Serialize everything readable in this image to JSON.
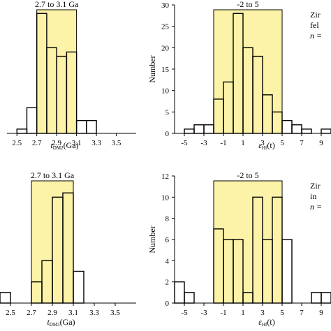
{
  "chart_data": [
    {
      "type": "bar",
      "panel": "top-left",
      "band_label": "2.7 to 3.1 Ga",
      "band_range": [
        2.7,
        3.1
      ],
      "xlim": [
        2.4,
        3.7
      ],
      "ylim": [
        0,
        30
      ],
      "x_ticks": [
        2.5,
        2.7,
        2.9,
        3.1,
        3.3,
        3.5
      ],
      "xlabel_main": "t",
      "xlabel_sub": "DM2",
      "xlabel_tail": "(Ga)",
      "bin_width": 0.1,
      "bins": [
        {
          "x": 2.55,
          "count": 1
        },
        {
          "x": 2.65,
          "count": 6
        },
        {
          "x": 2.75,
          "count": 28
        },
        {
          "x": 2.85,
          "count": 20
        },
        {
          "x": 2.95,
          "count": 18
        },
        {
          "x": 3.05,
          "count": 19
        },
        {
          "x": 3.15,
          "count": 3
        },
        {
          "x": 3.25,
          "count": 3
        }
      ]
    },
    {
      "type": "bar",
      "panel": "top-right",
      "band_label": "-2 to 5",
      "band_range": [
        -2,
        5
      ],
      "xlim": [
        -6,
        10
      ],
      "ylim": [
        0,
        30
      ],
      "x_ticks": [
        -5,
        -3,
        -1,
        1,
        3,
        5,
        7,
        9
      ],
      "y_ticks": [
        0,
        5,
        10,
        15,
        20,
        25,
        30
      ],
      "ylabel": "Number",
      "xlabel_main": "ε",
      "xlabel_sub": "Hf",
      "xlabel_tail": "(t)",
      "side_text": [
        "Zir",
        "fel",
        "n ="
      ],
      "bin_width": 1,
      "bins": [
        {
          "x": -4.5,
          "count": 1
        },
        {
          "x": -3.5,
          "count": 2
        },
        {
          "x": -2.5,
          "count": 2
        },
        {
          "x": -1.5,
          "count": 8
        },
        {
          "x": -0.5,
          "count": 12
        },
        {
          "x": 0.5,
          "count": 28
        },
        {
          "x": 1.5,
          "count": 20
        },
        {
          "x": 2.5,
          "count": 18
        },
        {
          "x": 3.5,
          "count": 9
        },
        {
          "x": 4.5,
          "count": 5
        },
        {
          "x": 5.5,
          "count": 3
        },
        {
          "x": 6.5,
          "count": 2
        },
        {
          "x": 7.5,
          "count": 1
        },
        {
          "x": 9.5,
          "count": 1
        }
      ]
    },
    {
      "type": "bar",
      "panel": "bottom-left",
      "band_label": "2.7 to 3.1 Ga",
      "band_range": [
        2.7,
        3.1
      ],
      "xlim": [
        2.4,
        3.7
      ],
      "ylim": [
        0,
        12
      ],
      "x_ticks": [
        2.5,
        2.7,
        2.9,
        3.1,
        3.3,
        3.5
      ],
      "xlabel_main": "t",
      "xlabel_sub": "DM3",
      "xlabel_tail": "(Ga)",
      "bin_width": 0.1,
      "bins": [
        {
          "x": 2.45,
          "count": 1
        },
        {
          "x": 2.75,
          "count": 2
        },
        {
          "x": 2.85,
          "count": 4
        },
        {
          "x": 2.95,
          "count": 10
        },
        {
          "x": 3.05,
          "count": 10.4
        },
        {
          "x": 3.15,
          "count": 3
        }
      ]
    },
    {
      "type": "bar",
      "panel": "bottom-right",
      "band_label": "-2 to 5",
      "band_range": [
        -2,
        5
      ],
      "xlim": [
        -6,
        10
      ],
      "ylim": [
        0,
        12
      ],
      "x_ticks": [
        -5,
        -3,
        -1,
        1,
        3,
        5,
        7,
        9
      ],
      "y_ticks": [
        0,
        2,
        4,
        6,
        8,
        10,
        12
      ],
      "ylabel": "Number",
      "xlabel_main": "ε",
      "xlabel_sub": "Hf",
      "xlabel_tail": "(t)",
      "side_text": [
        "Zir",
        "in",
        "n ="
      ],
      "bin_width": 1,
      "bins": [
        {
          "x": -5.5,
          "count": 2
        },
        {
          "x": -4.5,
          "count": 1
        },
        {
          "x": -1.5,
          "count": 7
        },
        {
          "x": -0.5,
          "count": 6
        },
        {
          "x": 0.5,
          "count": 6
        },
        {
          "x": 1.5,
          "count": 1
        },
        {
          "x": 2.5,
          "count": 10
        },
        {
          "x": 3.5,
          "count": 6
        },
        {
          "x": 4.5,
          "count": 10
        },
        {
          "x": 5.5,
          "count": 6
        },
        {
          "x": 8.5,
          "count": 1
        },
        {
          "x": 9.5,
          "count": 1
        }
      ]
    }
  ],
  "colors": {
    "band": "#fcf3a8",
    "band_edge": "#000000",
    "bar_stroke": "#000000",
    "bar_fill": "none"
  }
}
